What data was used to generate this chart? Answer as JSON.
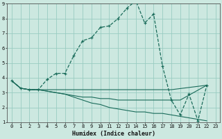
{
  "xlabel": "Humidex (Indice chaleur)",
  "xlim": [
    -0.5,
    23.5
  ],
  "ylim": [
    1,
    9
  ],
  "xticks": [
    0,
    1,
    2,
    3,
    4,
    5,
    6,
    7,
    8,
    9,
    10,
    11,
    12,
    13,
    14,
    15,
    16,
    17,
    18,
    19,
    20,
    21,
    22,
    23
  ],
  "yticks": [
    1,
    2,
    3,
    4,
    5,
    6,
    7,
    8,
    9
  ],
  "background_color": "#cce8e0",
  "grid_color": "#99ccc2",
  "line_color": "#1a6b5a",
  "series_main": {
    "x": [
      0,
      1,
      2,
      3,
      4,
      5,
      6,
      7,
      8,
      9,
      10,
      11,
      12,
      13,
      14,
      15,
      16,
      17,
      18,
      19,
      20,
      21,
      22
    ],
    "y": [
      3.8,
      3.3,
      3.2,
      3.2,
      3.9,
      4.3,
      4.3,
      5.5,
      6.5,
      6.7,
      7.4,
      7.5,
      8.0,
      8.7,
      9.2,
      7.7,
      8.3,
      4.8,
      2.5,
      1.5,
      2.9,
      1.1,
      3.5
    ]
  },
  "series_flat": [
    {
      "x": [
        0,
        1,
        2,
        3,
        4,
        5,
        6,
        7,
        8,
        9,
        10,
        11,
        12,
        13,
        14,
        15,
        16,
        17,
        18,
        22
      ],
      "y": [
        3.8,
        3.3,
        3.2,
        3.2,
        3.2,
        3.2,
        3.2,
        3.2,
        3.2,
        3.2,
        3.2,
        3.2,
        3.2,
        3.2,
        3.2,
        3.2,
        3.2,
        3.2,
        3.2,
        3.5
      ]
    },
    {
      "x": [
        0,
        1,
        2,
        3,
        4,
        5,
        6,
        7,
        8,
        9,
        10,
        11,
        12,
        13,
        14,
        15,
        16,
        17,
        18,
        19,
        22
      ],
      "y": [
        3.8,
        3.3,
        3.2,
        3.2,
        3.1,
        3.0,
        2.9,
        2.8,
        2.7,
        2.7,
        2.6,
        2.6,
        2.5,
        2.5,
        2.5,
        2.5,
        2.5,
        2.5,
        2.5,
        2.5,
        3.5
      ]
    },
    {
      "x": [
        0,
        1,
        2,
        3,
        4,
        5,
        6,
        7,
        8,
        9,
        10,
        11,
        12,
        13,
        14,
        15,
        16,
        17,
        18,
        19,
        20,
        21,
        22
      ],
      "y": [
        3.8,
        3.3,
        3.2,
        3.2,
        3.1,
        3.0,
        2.9,
        2.7,
        2.5,
        2.3,
        2.2,
        2.0,
        1.9,
        1.8,
        1.7,
        1.7,
        1.6,
        1.6,
        1.5,
        1.4,
        1.3,
        1.2,
        1.1
      ]
    }
  ]
}
